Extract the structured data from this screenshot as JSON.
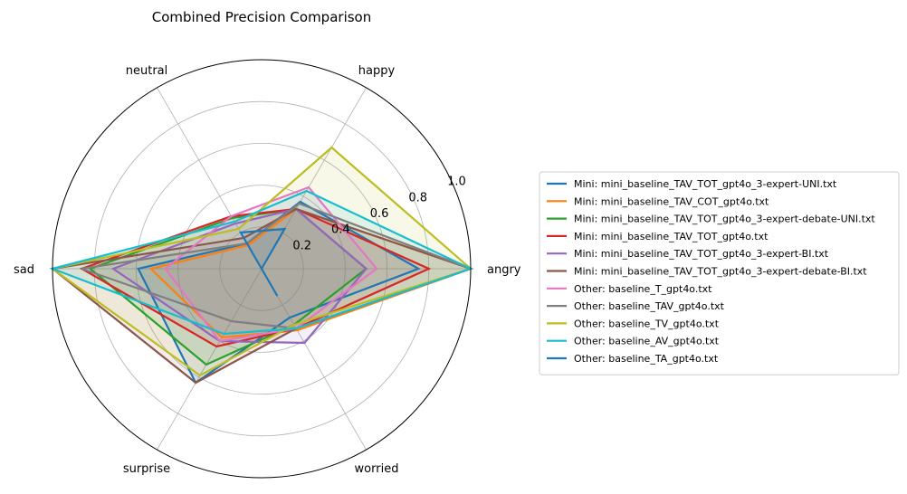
{
  "chart_data": {
    "type": "radar",
    "title": "Combined Precision Comparison",
    "axes": [
      "angry",
      "happy",
      "neutral",
      "sad",
      "surprise",
      "worried"
    ],
    "rlim": [
      0,
      1.0
    ],
    "radial_ticks": [
      {
        "value": 0.2,
        "label": "0.2"
      },
      {
        "value": 0.4,
        "label": "0.4"
      },
      {
        "value": 0.6,
        "label": "0.6"
      },
      {
        "value": 0.8,
        "label": "0.8"
      },
      {
        "value": 1.0,
        "label": "1.0"
      }
    ],
    "grid": true,
    "legend_position": "right",
    "series": [
      {
        "name": "Mini: mini_baseline_TAV_TOT_gpt4o_3-expert-UNI.txt",
        "color": "#1f77b4",
        "values": [
          0.75,
          0.37,
          0.14,
          0.59,
          0.63,
          0.27
        ]
      },
      {
        "name": "Mini: mini_baseline_TAV_COT_gpt4o.txt",
        "color": "#ff7f0e",
        "values": [
          1.0,
          0.33,
          0.13,
          0.53,
          0.38,
          0.34
        ]
      },
      {
        "name": "Mini: mini_baseline_TAV_TOT_gpt4o_3-expert-debate-UNI.txt",
        "color": "#2ca02c",
        "values": [
          0.5,
          0.33,
          0.28,
          0.82,
          0.53,
          0.31
        ]
      },
      {
        "name": "Mini: mini_baseline_TAV_TOT_gpt4o.txt",
        "color": "#d62728",
        "values": [
          0.8,
          0.33,
          0.29,
          0.86,
          0.43,
          0.33
        ]
      },
      {
        "name": "Mini: mini_baseline_TAV_TOT_gpt4o_3-expert-BI.txt",
        "color": "#9467bd",
        "values": [
          0.5,
          0.33,
          0.25,
          0.71,
          0.4,
          0.41
        ]
      },
      {
        "name": "Mini: mini_baseline_TAV_TOT_gpt4o_3-expert-debate-BI.txt",
        "color": "#8c564b",
        "values": [
          1.0,
          0.33,
          0.17,
          1.0,
          0.63,
          0.33
        ]
      },
      {
        "name": "Other: baseline_T_gpt4o.txt",
        "color": "#e377c2",
        "values": [
          0.55,
          0.45,
          0.29,
          0.46,
          0.4,
          0.33
        ]
      },
      {
        "name": "Other: baseline_TAV_gpt4o.txt",
        "color": "#7f7f7f",
        "values": [
          1.0,
          0.36,
          0.14,
          0.86,
          0.29,
          0.33
        ]
      },
      {
        "name": "Other: baseline_TV_gpt4o.txt",
        "color": "#bcbd22",
        "values": [
          1.0,
          0.67,
          0.22,
          1.0,
          0.59,
          0.31
        ]
      },
      {
        "name": "Other: baseline_AV_gpt4o.txt",
        "color": "#17becf",
        "values": [
          1.0,
          0.43,
          0.26,
          1.0,
          0.36,
          0.33
        ]
      },
      {
        "name": "Other: baseline_TA_gpt4o.txt",
        "color": "#1f77b4",
        "values": [
          0.0,
          0.22,
          0.2,
          0.0,
          0.0,
          0.15
        ]
      }
    ]
  }
}
